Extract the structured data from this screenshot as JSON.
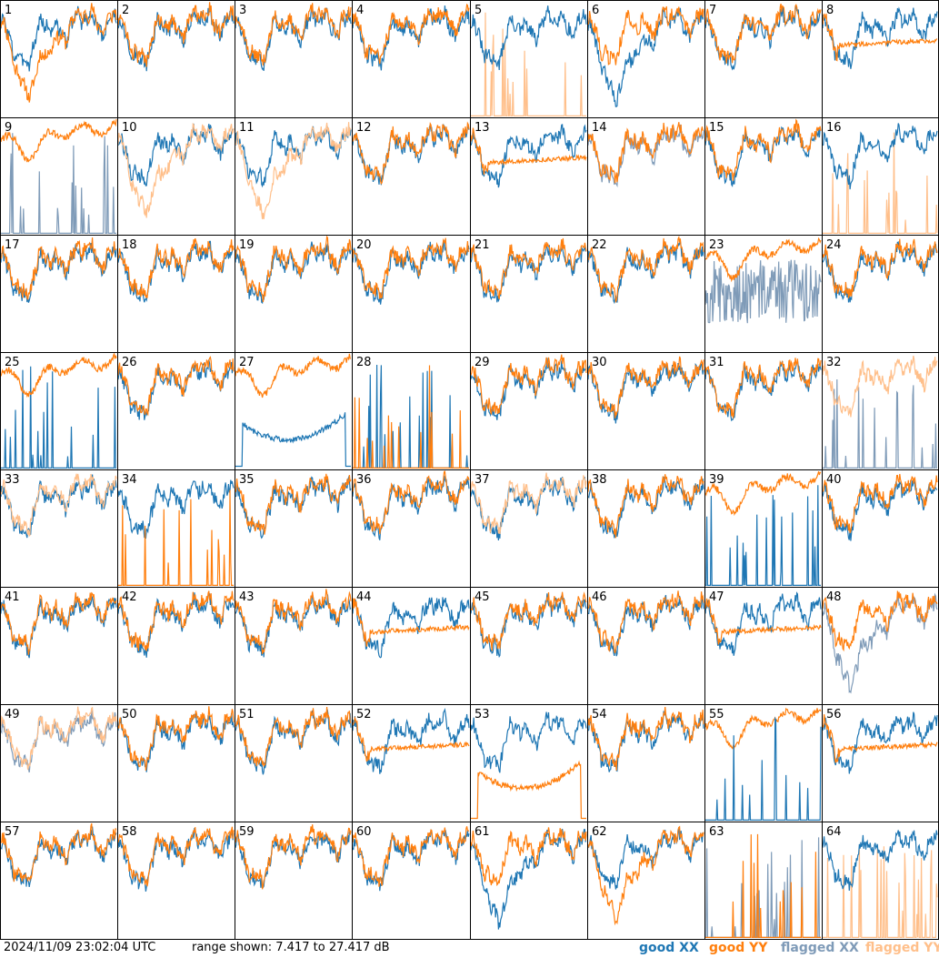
{
  "footer": {
    "timestamp": "2024/11/09 23:02:04 UTC",
    "range_text": "range shown: 7.417 to 27.417 dB"
  },
  "legend": [
    {
      "label": "good XX",
      "color": "#1f77b4"
    },
    {
      "label": "good YY",
      "color": "#ff7f0e"
    },
    {
      "label": "flagged XX",
      "color": "#7f9bb8"
    },
    {
      "label": "flagged YY",
      "color": "#ffbf8a"
    }
  ],
  "chart_data": {
    "type": "line",
    "layout": "8x8 small multiples",
    "y_unit": "dB",
    "ylim": [
      7.417,
      27.417
    ],
    "series_names": [
      "good XX",
      "good YY",
      "flagged XX",
      "flagged YY"
    ],
    "panels": [
      {
        "label": "1",
        "xx": "good",
        "yy": "good",
        "xx_style": "normal",
        "yy_style": "dip",
        "yy_on_top": true
      },
      {
        "label": "2",
        "xx": "good",
        "yy": "good",
        "xx_style": "normal",
        "yy_style": "normal",
        "yy_on_top": true
      },
      {
        "label": "3",
        "xx": "good",
        "yy": "good",
        "xx_style": "normal",
        "yy_style": "normal",
        "yy_on_top": true
      },
      {
        "label": "4",
        "xx": "good",
        "yy": "good",
        "xx_style": "normal",
        "yy_style": "normal",
        "yy_on_top": true
      },
      {
        "label": "5",
        "xx": "good",
        "yy": "flagged",
        "xx_style": "normal",
        "yy_style": "spikes",
        "yy_on_top": false
      },
      {
        "label": "6",
        "xx": "good",
        "yy": "good",
        "xx_style": "dip",
        "yy_style": "normal",
        "yy_on_top": true
      },
      {
        "label": "7",
        "xx": "good",
        "yy": "good",
        "xx_style": "normal",
        "yy_style": "normal",
        "yy_on_top": true
      },
      {
        "label": "8",
        "xx": "good",
        "yy": "good",
        "xx_style": "normal",
        "yy_style": "flat",
        "yy_on_top": true
      },
      {
        "label": "9",
        "xx": "flagged",
        "yy": "good",
        "xx_style": "spikes",
        "yy_style": "high",
        "yy_on_top": true
      },
      {
        "label": "10",
        "xx": "good",
        "yy": "flagged",
        "xx_style": "normal",
        "yy_style": "dip",
        "yy_on_top": true
      },
      {
        "label": "11",
        "xx": "good",
        "yy": "flagged",
        "xx_style": "normal",
        "yy_style": "dip",
        "yy_on_top": true
      },
      {
        "label": "12",
        "xx": "good",
        "yy": "good",
        "xx_style": "normal",
        "yy_style": "normal",
        "yy_on_top": true
      },
      {
        "label": "13",
        "xx": "good",
        "yy": "good",
        "xx_style": "normal",
        "yy_style": "flat",
        "yy_on_top": true
      },
      {
        "label": "14",
        "xx": "flagged",
        "yy": "good",
        "xx_style": "normal",
        "yy_style": "normal",
        "yy_on_top": true
      },
      {
        "label": "15",
        "xx": "good",
        "yy": "good",
        "xx_style": "normal",
        "yy_style": "normal",
        "yy_on_top": true
      },
      {
        "label": "16",
        "xx": "good",
        "yy": "flagged",
        "xx_style": "normal",
        "yy_style": "spikes",
        "yy_on_top": false
      },
      {
        "label": "17",
        "xx": "good",
        "yy": "good",
        "xx_style": "normal",
        "yy_style": "normal",
        "yy_on_top": true
      },
      {
        "label": "18",
        "xx": "good",
        "yy": "good",
        "xx_style": "normal",
        "yy_style": "normal",
        "yy_on_top": true
      },
      {
        "label": "19",
        "xx": "good",
        "yy": "good",
        "xx_style": "normal",
        "yy_style": "normal",
        "yy_on_top": true
      },
      {
        "label": "20",
        "xx": "good",
        "yy": "good",
        "xx_style": "normal",
        "yy_style": "normal",
        "yy_on_top": true
      },
      {
        "label": "21",
        "xx": "good",
        "yy": "good",
        "xx_style": "normal",
        "yy_style": "normal",
        "yy_on_top": true
      },
      {
        "label": "22",
        "xx": "good",
        "yy": "good",
        "xx_style": "normal",
        "yy_style": "normal",
        "yy_on_top": true
      },
      {
        "label": "23",
        "xx": "flagged",
        "yy": "good",
        "xx_style": "noisy",
        "yy_style": "high",
        "yy_on_top": true
      },
      {
        "label": "24",
        "xx": "good",
        "yy": "good",
        "xx_style": "normal",
        "yy_style": "normal",
        "yy_on_top": true
      },
      {
        "label": "25",
        "xx": "good",
        "yy": "good",
        "xx_style": "spikes",
        "yy_style": "high",
        "yy_on_top": true
      },
      {
        "label": "26",
        "xx": "good",
        "yy": "good",
        "xx_style": "normal",
        "yy_style": "normal",
        "yy_on_top": true
      },
      {
        "label": "27",
        "xx": "good",
        "yy": "good",
        "xx_style": "bowl",
        "yy_style": "high",
        "yy_on_top": false
      },
      {
        "label": "28",
        "xx": "good",
        "yy": "good",
        "xx_style": "spikes",
        "yy_style": "spikes",
        "yy_on_top": true
      },
      {
        "label": "29",
        "xx": "good",
        "yy": "good",
        "xx_style": "normal",
        "yy_style": "normal",
        "yy_on_top": true
      },
      {
        "label": "30",
        "xx": "good",
        "yy": "good",
        "xx_style": "normal",
        "yy_style": "normal",
        "yy_on_top": true
      },
      {
        "label": "31",
        "xx": "good",
        "yy": "good",
        "xx_style": "normal",
        "yy_style": "normal",
        "yy_on_top": true
      },
      {
        "label": "32",
        "xx": "flagged",
        "yy": "flagged",
        "xx_style": "spikes",
        "yy_style": "normal",
        "yy_on_top": true
      },
      {
        "label": "33",
        "xx": "good",
        "yy": "flagged",
        "xx_style": "normal",
        "yy_style": "normal",
        "yy_on_top": true
      },
      {
        "label": "34",
        "xx": "good",
        "yy": "good",
        "xx_style": "normal",
        "yy_style": "spikes",
        "yy_on_top": true
      },
      {
        "label": "35",
        "xx": "good",
        "yy": "good",
        "xx_style": "normal",
        "yy_style": "normal",
        "yy_on_top": true
      },
      {
        "label": "36",
        "xx": "good",
        "yy": "good",
        "xx_style": "normal",
        "yy_style": "normal",
        "yy_on_top": true
      },
      {
        "label": "37",
        "xx": "good",
        "yy": "flagged",
        "xx_style": "normal",
        "yy_style": "normal",
        "yy_on_top": true
      },
      {
        "label": "38",
        "xx": "good",
        "yy": "good",
        "xx_style": "normal",
        "yy_style": "normal",
        "yy_on_top": true
      },
      {
        "label": "39",
        "xx": "good",
        "yy": "good",
        "xx_style": "spikes",
        "yy_style": "high",
        "yy_on_top": true
      },
      {
        "label": "40",
        "xx": "good",
        "yy": "good",
        "xx_style": "normal",
        "yy_style": "normal",
        "yy_on_top": true
      },
      {
        "label": "41",
        "xx": "good",
        "yy": "good",
        "xx_style": "normal",
        "yy_style": "normal",
        "yy_on_top": true
      },
      {
        "label": "42",
        "xx": "good",
        "yy": "good",
        "xx_style": "normal",
        "yy_style": "normal",
        "yy_on_top": true
      },
      {
        "label": "43",
        "xx": "good",
        "yy": "good",
        "xx_style": "normal",
        "yy_style": "normal",
        "yy_on_top": true
      },
      {
        "label": "44",
        "xx": "good",
        "yy": "good",
        "xx_style": "normal",
        "yy_style": "flat",
        "yy_on_top": true
      },
      {
        "label": "45",
        "xx": "good",
        "yy": "good",
        "xx_style": "normal",
        "yy_style": "normal",
        "yy_on_top": true
      },
      {
        "label": "46",
        "xx": "good",
        "yy": "good",
        "xx_style": "normal",
        "yy_style": "normal",
        "yy_on_top": true
      },
      {
        "label": "47",
        "xx": "good",
        "yy": "good",
        "xx_style": "normal",
        "yy_style": "flat",
        "yy_on_top": true
      },
      {
        "label": "48",
        "xx": "flagged",
        "yy": "good",
        "xx_style": "dip",
        "yy_style": "normal",
        "yy_on_top": true
      },
      {
        "label": "49",
        "xx": "flagged",
        "yy": "flagged",
        "xx_style": "normal",
        "yy_style": "normal",
        "yy_on_top": true
      },
      {
        "label": "50",
        "xx": "good",
        "yy": "good",
        "xx_style": "normal",
        "yy_style": "normal",
        "yy_on_top": true
      },
      {
        "label": "51",
        "xx": "good",
        "yy": "good",
        "xx_style": "normal",
        "yy_style": "normal",
        "yy_on_top": true
      },
      {
        "label": "52",
        "xx": "good",
        "yy": "good",
        "xx_style": "normal",
        "yy_style": "flat",
        "yy_on_top": true
      },
      {
        "label": "53",
        "xx": "good",
        "yy": "good",
        "xx_style": "normal",
        "yy_style": "bowl",
        "yy_on_top": true
      },
      {
        "label": "54",
        "xx": "good",
        "yy": "good",
        "xx_style": "normal",
        "yy_style": "normal",
        "yy_on_top": true
      },
      {
        "label": "55",
        "xx": "good",
        "yy": "good",
        "xx_style": "spikes",
        "yy_style": "high",
        "yy_on_top": false
      },
      {
        "label": "56",
        "xx": "good",
        "yy": "good",
        "xx_style": "normal",
        "yy_style": "flat",
        "yy_on_top": true
      },
      {
        "label": "57",
        "xx": "good",
        "yy": "good",
        "xx_style": "normal",
        "yy_style": "normal",
        "yy_on_top": true
      },
      {
        "label": "58",
        "xx": "good",
        "yy": "good",
        "xx_style": "normal",
        "yy_style": "normal",
        "yy_on_top": true
      },
      {
        "label": "59",
        "xx": "good",
        "yy": "good",
        "xx_style": "normal",
        "yy_style": "normal",
        "yy_on_top": true
      },
      {
        "label": "60",
        "xx": "good",
        "yy": "good",
        "xx_style": "normal",
        "yy_style": "normal",
        "yy_on_top": true
      },
      {
        "label": "61",
        "xx": "good",
        "yy": "good",
        "xx_style": "dip",
        "yy_style": "normal",
        "yy_on_top": true
      },
      {
        "label": "62",
        "xx": "good",
        "yy": "good",
        "xx_style": "normal",
        "yy_style": "dip",
        "yy_on_top": true
      },
      {
        "label": "63",
        "xx": "flagged",
        "yy": "good",
        "xx_style": "spikes",
        "yy_style": "spikes",
        "yy_on_top": true
      },
      {
        "label": "64",
        "xx": "good",
        "yy": "flagged",
        "xx_style": "normal",
        "yy_style": "spikes",
        "yy_on_top": false
      }
    ]
  }
}
